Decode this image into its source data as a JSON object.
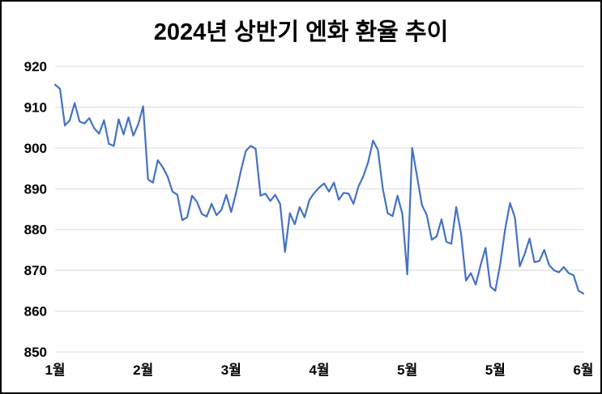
{
  "chart_data": {
    "type": "line",
    "title": "2024년 상반기 엔화 환율 추이",
    "xlabel": "",
    "ylabel": "",
    "ylim": [
      850,
      920
    ],
    "y_ticks": [
      850,
      860,
      870,
      880,
      890,
      900,
      910,
      920
    ],
    "x_tick_labels": [
      "1월",
      "2월",
      "3월",
      "4월",
      "5월",
      "5월",
      "6월"
    ],
    "grid": "horizontal",
    "legend": "none",
    "colors": {
      "line": "#4472C4",
      "gridline": "#D9D9D9",
      "text": "#000000",
      "background": "#FFFFFF",
      "border": "#000000"
    },
    "series": [
      {
        "name": "엔화 환율",
        "color": "#4472C4",
        "values": [
          915.5,
          914.5,
          905.5,
          906.8,
          911.0,
          906.5,
          906.0,
          907.3,
          904.8,
          903.5,
          906.8,
          901.0,
          900.5,
          907.0,
          903.3,
          907.5,
          903.0,
          905.8,
          910.2,
          892.3,
          891.5,
          897.0,
          895.3,
          893.0,
          889.3,
          888.5,
          882.3,
          883.0,
          888.3,
          886.8,
          883.8,
          883.2,
          886.3,
          883.5,
          884.8,
          888.5,
          884.3,
          889.0,
          894.5,
          899.3,
          900.5,
          899.8,
          888.3,
          888.8,
          887.0,
          888.5,
          886.3,
          874.5,
          884.0,
          881.3,
          885.5,
          883.0,
          887.3,
          889.0,
          890.3,
          891.3,
          889.3,
          891.5,
          887.3,
          889.0,
          888.8,
          886.3,
          890.5,
          893.0,
          896.5,
          901.8,
          899.5,
          890.0,
          884.0,
          883.3,
          888.3,
          883.8,
          869.0,
          900.0,
          893.0,
          886.0,
          883.5,
          877.5,
          878.3,
          882.5,
          877.0,
          876.5,
          885.5,
          879.0,
          867.5,
          869.3,
          866.5,
          871.3,
          875.5,
          866.0,
          865.0,
          871.5,
          880.0,
          886.5,
          883.0,
          871.0,
          874.0,
          877.8,
          872.0,
          872.3,
          875.0,
          871.3,
          870.0,
          869.5,
          870.8,
          869.3,
          868.8,
          865.0,
          864.3
        ]
      }
    ]
  }
}
